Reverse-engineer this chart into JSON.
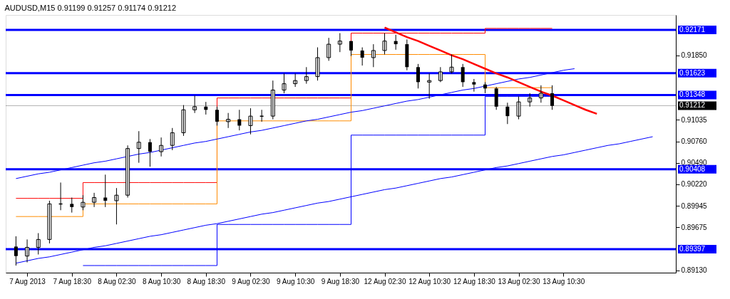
{
  "chart_data": {
    "type": "candlestick",
    "title": "AUDUSD,M15  0.91199 0.91257 0.91174 0.91212",
    "categories": [
      null,
      "7 Aug 2013",
      null,
      null,
      null,
      "7 Aug 18:30",
      null,
      null,
      null,
      "8 Aug 02:30",
      null,
      null,
      null,
      "8 Aug 10:30",
      null,
      null,
      null,
      "8 Aug 18:30",
      null,
      null,
      null,
      "9 Aug 02:30",
      null,
      null,
      null,
      "9 Aug 10:30",
      null,
      null,
      null,
      "9 Aug 18:30",
      null,
      null,
      null,
      "12 Aug 02:30",
      null,
      null,
      null,
      "12 Aug 10:30",
      null,
      null,
      null,
      "12 Aug 18:30",
      null,
      null,
      null,
      "13 Aug 02:30",
      null,
      null,
      null,
      "13 Aug 10:30",
      null,
      null,
      null,
      null,
      null,
      null,
      null,
      null,
      null
    ],
    "ohlc": [
      [
        0.8943,
        0.8956,
        0.8919,
        0.8931
      ],
      [
        0.8931,
        0.8952,
        0.8923,
        0.8942
      ],
      [
        0.8942,
        0.896,
        0.8933,
        0.8952
      ],
      [
        0.8952,
        0.9001,
        0.8947,
        0.8997
      ],
      [
        0.8997,
        0.9024,
        0.8989,
        0.8997
      ],
      [
        0.8997,
        0.9005,
        0.8986,
        0.8993
      ],
      [
        0.8993,
        0.9008,
        0.8989,
        0.8999
      ],
      [
        0.8999,
        0.9011,
        0.8993,
        0.9005
      ],
      [
        0.9005,
        0.9034,
        0.8993,
        0.9001
      ],
      [
        0.9001,
        0.9017,
        0.8971,
        0.9008
      ],
      [
        0.9008,
        0.9071,
        0.9005,
        0.9067
      ],
      [
        0.9067,
        0.9089,
        0.9049,
        0.9075
      ],
      [
        0.9075,
        0.9079,
        0.9044,
        0.9063
      ],
      [
        0.9063,
        0.9081,
        0.9057,
        0.9071
      ],
      [
        0.9071,
        0.9093,
        0.9065,
        0.9087
      ],
      [
        0.9087,
        0.9122,
        0.9083,
        0.9116
      ],
      [
        0.9116,
        0.9134,
        0.9112,
        0.912
      ],
      [
        0.912,
        0.9126,
        0.911,
        0.9116
      ],
      [
        0.9116,
        0.912,
        0.9096,
        0.9101
      ],
      [
        0.9101,
        0.9112,
        0.9093,
        0.9104
      ],
      [
        0.9104,
        0.9116,
        0.909,
        0.9096
      ],
      [
        0.9096,
        0.9118,
        0.9085,
        0.9108
      ],
      [
        0.9108,
        0.9116,
        0.9101,
        0.9108
      ],
      [
        0.9108,
        0.9153,
        0.9104,
        0.9141
      ],
      [
        0.9141,
        0.9162,
        0.9137,
        0.9149
      ],
      [
        0.9149,
        0.9162,
        0.9145,
        0.9153
      ],
      [
        0.9153,
        0.917,
        0.9149,
        0.9158
      ],
      [
        0.9158,
        0.9195,
        0.9153,
        0.9182
      ],
      [
        0.9182,
        0.9207,
        0.9178,
        0.9199
      ],
      [
        0.9199,
        0.9213,
        0.9189,
        0.9203
      ],
      [
        0.9203,
        0.9203,
        0.9184,
        0.9191
      ],
      [
        0.9191,
        0.9195,
        0.9172,
        0.9182
      ],
      [
        0.9182,
        0.9199,
        0.917,
        0.9191
      ],
      [
        0.9191,
        0.9213,
        0.9186,
        0.9203
      ],
      [
        0.9203,
        0.9211,
        0.9192,
        0.9199
      ],
      [
        0.9199,
        0.9205,
        0.9166,
        0.917
      ],
      [
        0.917,
        0.9174,
        0.9143,
        0.9151
      ],
      [
        0.9151,
        0.9162,
        0.913,
        0.9153
      ],
      [
        0.9153,
        0.917,
        0.9151,
        0.9164
      ],
      [
        0.9164,
        0.9186,
        0.9162,
        0.917
      ],
      [
        0.917,
        0.9174,
        0.9145,
        0.9151
      ],
      [
        0.9151,
        0.9155,
        0.9139,
        0.9148
      ],
      [
        0.9148,
        0.9151,
        0.9137,
        0.9143
      ],
      [
        0.9143,
        0.9145,
        0.9116,
        0.912
      ],
      [
        0.912,
        0.9125,
        0.9098,
        0.9108
      ],
      [
        0.9108,
        0.9133,
        0.9104,
        0.9126
      ],
      [
        0.9126,
        0.9137,
        0.912,
        0.9131
      ],
      [
        0.9131,
        0.9147,
        0.9125,
        0.9137
      ],
      [
        0.9137,
        0.9147,
        0.9116,
        0.9121
      ],
      null,
      null,
      null,
      null,
      null,
      null,
      null,
      null,
      null,
      null
    ],
    "series": [
      {
        "type": "step",
        "color": "#ff0000",
        "values": [
          0.9004,
          0.9004,
          0.9004,
          0.9004,
          0.9004,
          0.9004,
          0.9024,
          0.9024,
          0.9024,
          0.9024,
          0.9024,
          0.9024,
          0.9024,
          0.9024,
          0.9024,
          0.9024,
          0.9024,
          0.9024,
          0.9131,
          0.9131,
          0.9131,
          0.9131,
          0.9131,
          0.9131,
          0.9131,
          0.9131,
          0.9131,
          0.9131,
          0.9131,
          0.9131,
          0.9213,
          0.9213,
          0.9213,
          0.9213,
          0.9213,
          0.9213,
          0.9213,
          0.9213,
          0.9213,
          0.9213,
          0.9213,
          0.9213,
          0.9219,
          0.9219,
          0.9219,
          0.9219,
          0.9219,
          0.9219,
          0.9219,
          null,
          null,
          null,
          null,
          null,
          null,
          null,
          null,
          null,
          null
        ]
      },
      {
        "type": "step",
        "color": "#ff8c00",
        "values": [
          0.8981,
          0.8981,
          0.8981,
          0.8981,
          0.8981,
          0.8981,
          0.8997,
          0.8997,
          0.8997,
          0.8997,
          0.8997,
          0.8997,
          0.8997,
          0.8997,
          0.8997,
          0.8997,
          0.8997,
          0.8997,
          0.9102,
          0.9102,
          0.9102,
          0.9102,
          0.9102,
          0.9102,
          0.9102,
          0.9102,
          0.9102,
          0.9102,
          0.9102,
          0.9102,
          0.9186,
          0.9186,
          0.9186,
          0.9186,
          0.9186,
          0.9186,
          0.9186,
          0.9186,
          0.9186,
          0.9186,
          0.9186,
          0.9186,
          0.9144,
          0.9144,
          0.9144,
          0.9144,
          0.9144,
          0.9144,
          0.9144,
          null,
          null,
          null,
          null,
          null,
          null,
          null,
          null,
          null,
          null
        ]
      },
      {
        "type": "step",
        "color": "#0000ff",
        "values": [
          null,
          null,
          null,
          null,
          null,
          null,
          0.8919,
          0.8919,
          0.8919,
          0.8919,
          0.8919,
          0.8919,
          0.8919,
          0.8919,
          0.8919,
          0.8919,
          0.8919,
          0.8919,
          0.8971,
          0.8971,
          0.8971,
          0.8971,
          0.8971,
          0.8971,
          0.8971,
          0.8971,
          0.8971,
          0.8971,
          0.8971,
          0.8971,
          0.9084,
          0.9084,
          0.9084,
          0.9084,
          0.9084,
          0.9084,
          0.9084,
          0.9084,
          0.9084,
          0.9084,
          0.9084,
          0.9084,
          0.9133,
          0.9133,
          0.9133,
          0.9133,
          0.9133,
          0.9133,
          0.9133,
          null,
          null,
          null,
          null,
          null,
          null,
          null,
          null,
          null,
          null
        ]
      },
      {
        "type": "line",
        "color": "#0000ff",
        "values": [
          0.9029,
          0.9032,
          0.9035,
          0.9037,
          0.904,
          0.9043,
          0.9046,
          0.9049,
          0.9051,
          0.9054,
          0.9057,
          0.906,
          0.9062,
          0.9065,
          0.9068,
          0.9071,
          0.9074,
          0.9076,
          0.9079,
          0.9082,
          0.9085,
          0.9088,
          0.909,
          0.9093,
          0.9096,
          0.9099,
          0.9102,
          0.9104,
          0.9107,
          0.911,
          0.9113,
          0.9115,
          0.9118,
          0.9121,
          0.9124,
          0.9127,
          0.9129,
          0.9132,
          0.9135,
          0.9138,
          0.9141,
          0.9143,
          0.9146,
          0.9149,
          0.9152,
          0.9155,
          0.9157,
          0.916,
          0.9163,
          0.9166,
          0.9168,
          null,
          null,
          null,
          null,
          null,
          null,
          null,
          null
        ]
      },
      {
        "type": "line",
        "color": "#0000ff",
        "values": [
          0.8922,
          0.8925,
          0.8928,
          0.893,
          0.8933,
          0.8936,
          0.8939,
          0.8942,
          0.8944,
          0.8947,
          0.895,
          0.8953,
          0.8956,
          0.8958,
          0.8961,
          0.8964,
          0.8967,
          0.897,
          0.8972,
          0.8975,
          0.8978,
          0.8981,
          0.8984,
          0.8986,
          0.8989,
          0.8992,
          0.8995,
          0.8998,
          0.9,
          0.9003,
          0.9006,
          0.9009,
          0.9012,
          0.9015,
          0.9017,
          0.902,
          0.9023,
          0.9026,
          0.9029,
          0.9031,
          0.9034,
          0.9037,
          0.904,
          0.9043,
          0.9045,
          0.9048,
          0.9051,
          0.9054,
          0.9057,
          0.9059,
          0.9062,
          0.9065,
          0.9068,
          0.9071,
          0.9073,
          0.9076,
          0.9079,
          0.9082,
          null
        ]
      },
      {
        "type": "line",
        "color": "#ff0000",
        "values": [
          null,
          null,
          null,
          null,
          null,
          null,
          null,
          null,
          null,
          null,
          null,
          null,
          null,
          null,
          null,
          null,
          null,
          null,
          null,
          null,
          null,
          null,
          null,
          null,
          null,
          null,
          null,
          null,
          null,
          null,
          null,
          null,
          null,
          0.922,
          0.9214,
          0.9208,
          0.9203,
          0.9197,
          0.9191,
          0.9185,
          0.918,
          0.9174,
          0.9168,
          0.9162,
          0.9157,
          0.9151,
          0.9145,
          0.9139,
          0.9134,
          0.9128,
          0.9122,
          0.9116,
          0.9111,
          null,
          null,
          null,
          null,
          null,
          null
        ]
      }
    ],
    "ylim": [
      0.891,
      0.9236
    ],
    "yticks": [
      {
        "value": 0.9185,
        "label": "0.91850"
      },
      {
        "value": 0.91035,
        "label": "0.91035"
      },
      {
        "value": 0.9076,
        "label": "0.90760"
      },
      {
        "value": 0.9049,
        "label": "0.90490"
      },
      {
        "value": 0.9022,
        "label": "0.90220"
      },
      {
        "value": 0.89945,
        "label": "0.89945"
      },
      {
        "value": 0.89675,
        "label": "0.89675"
      },
      {
        "value": 0.8913,
        "label": "0.89130"
      }
    ],
    "ref_lines": [
      {
        "axis": "y",
        "value": 0.92171,
        "label": "0.92171",
        "color": "#0000ff"
      },
      {
        "axis": "y",
        "value": 0.91623,
        "label": "0.91623",
        "color": "#0000ff"
      },
      {
        "axis": "y",
        "value": 0.91348,
        "label": "0.91348",
        "color": "#0000ff"
      },
      {
        "axis": "y",
        "value": 0.90408,
        "label": "0.90408",
        "color": "#0000ff"
      },
      {
        "axis": "y",
        "value": 0.89397,
        "label": "0.89397",
        "color": "#0000ff"
      },
      {
        "axis": "y",
        "value": 0.91212,
        "label": "0.91212",
        "color": "#000000",
        "line_style": "solid"
      }
    ],
    "grid": false
  }
}
